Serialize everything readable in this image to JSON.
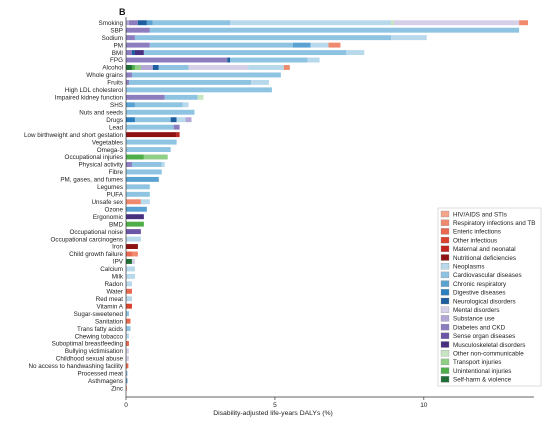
{
  "chart_data": {
    "type": "bar",
    "orientation": "horizontal",
    "stacked": true,
    "panel_label": "B",
    "xlabel": "Disability-adjusted life-years DALYs (%)",
    "ylabel": "",
    "xlim": [
      0,
      13.7
    ],
    "xticks": [
      0,
      5,
      10
    ],
    "grid": false,
    "legend_position": "bottom-right",
    "causes": [
      {
        "name": "HIV/AIDS and STIs",
        "color": "#f4a58a"
      },
      {
        "name": "Respiratory infections and TB",
        "color": "#f08a6e"
      },
      {
        "name": "Enteric infections",
        "color": "#e8694f"
      },
      {
        "name": "Other infectious",
        "color": "#d9432f"
      },
      {
        "name": "Maternal and neonatal",
        "color": "#c0261f"
      },
      {
        "name": "Nutritional deficiencies",
        "color": "#8e1212"
      },
      {
        "name": "Neoplasms",
        "color": "#b8d8ec"
      },
      {
        "name": "Cardiovascular diseases",
        "color": "#8ec3e1"
      },
      {
        "name": "Chronic respiratory",
        "color": "#5aa2d1"
      },
      {
        "name": "Digestive diseases",
        "color": "#2b7fbf"
      },
      {
        "name": "Neurological disorders",
        "color": "#1d5e9e"
      },
      {
        "name": "Mental disorders",
        "color": "#d6cfe8"
      },
      {
        "name": "Substance use",
        "color": "#b3a7d6"
      },
      {
        "name": "Diabetes and CKD",
        "color": "#8c7dbf"
      },
      {
        "name": "Sense organ diseases",
        "color": "#6a55a6"
      },
      {
        "name": "Musculoskeletal disorders",
        "color": "#47307f"
      },
      {
        "name": "Other non-communicable",
        "color": "#c7e5c2"
      },
      {
        "name": "Transport injuries",
        "color": "#8fcf85"
      },
      {
        "name": "Unintentional injuries",
        "color": "#4fae4a"
      },
      {
        "name": "Self-harm & violence",
        "color": "#1f6e35"
      }
    ],
    "categories": [
      "Smoking",
      "SBP",
      "Sodium",
      "PM",
      "BMI",
      "FPG",
      "Alcohol",
      "Whole grains",
      "Fruits",
      "High LDL cholesterol",
      "Impaired kidney function",
      "SHS",
      "Nuts and seeds",
      "Drugs",
      "Lead",
      "Low birthweight and short gestation",
      "Vegetables",
      "Omega-3",
      "Occupational injuries",
      "Physical activity",
      "Fibre",
      "PM, gases, and fumes",
      "Legumes",
      "PUFA",
      "Unsafe sex",
      "Ozone",
      "Ergonomic",
      "BMD",
      "Occupational noise",
      "Occupational carcinogens",
      "Iron",
      "Child growth failure",
      "IPV",
      "Calcium",
      "Milk",
      "Radon",
      "Water",
      "Red meat",
      "Vitamin A",
      "Sugar-sweetened",
      "Sanitation",
      "Trans fatty acids",
      "Chewing tobacco",
      "Suboptimal breastfeeding",
      "Bullying victimisation",
      "Childhood sexual abuse",
      "No access to handwashing facility",
      "Processed meat",
      "Asthmagens",
      "Zinc"
    ],
    "bars": [
      [
        [
          "Substance use",
          0.1
        ],
        [
          "Diabetes and CKD",
          0.3
        ],
        [
          "Neurological disorders",
          0.3
        ],
        [
          "Chronic respiratory",
          0.2
        ],
        [
          "Cardiovascular diseases",
          2.6
        ],
        [
          "Neoplasms",
          5.4
        ],
        [
          "Other non-communicable",
          0.1
        ],
        [
          "Mental disorders",
          4.2
        ],
        [
          "Respiratory infections and TB",
          0.3
        ]
      ],
      [
        [
          "Diabetes and CKD",
          0.8
        ],
        [
          "Cardiovascular diseases",
          12.4
        ]
      ],
      [
        [
          "Diabetes and CKD",
          0.3
        ],
        [
          "Cardiovascular diseases",
          8.6
        ],
        [
          "Neoplasms",
          1.2
        ]
      ],
      [
        [
          "Diabetes and CKD",
          0.8
        ],
        [
          "Cardiovascular diseases",
          4.8
        ],
        [
          "Chronic respiratory",
          0.6
        ],
        [
          "Neoplasms",
          0.6
        ],
        [
          "Respiratory infections and TB",
          0.4
        ]
      ],
      [
        [
          "Diabetes and CKD",
          0.2
        ],
        [
          "Neurological disorders",
          0.1
        ],
        [
          "Musculoskeletal disorders",
          0.3
        ],
        [
          "Cardiovascular diseases",
          6.8
        ],
        [
          "Neoplasms",
          0.6
        ]
      ],
      [
        [
          "Diabetes and CKD",
          3.4
        ],
        [
          "Neurological disorders",
          0.1
        ],
        [
          "Cardiovascular diseases",
          2.6
        ],
        [
          "Neoplasms",
          0.4
        ]
      ],
      [
        [
          "Self-harm & violence",
          0.2
        ],
        [
          "Unintentional injuries",
          0.1
        ],
        [
          "Transport injuries",
          0.2
        ],
        [
          "Substance use",
          0.4
        ],
        [
          "Neurological disorders",
          0.2
        ],
        [
          "Cardiovascular diseases",
          1.0
        ],
        [
          "Mental disorders",
          2.0
        ],
        [
          "Neoplasms",
          1.2
        ],
        [
          "Respiratory infections and TB",
          0.2
        ]
      ],
      [
        [
          "Diabetes and CKD",
          0.2
        ],
        [
          "Cardiovascular diseases",
          5.0
        ]
      ],
      [
        [
          "Diabetes and CKD",
          0.1
        ],
        [
          "Cardiovascular diseases",
          4.1
        ],
        [
          "Neoplasms",
          0.6
        ]
      ],
      [
        [
          "Cardiovascular diseases",
          4.9
        ]
      ],
      [
        [
          "Diabetes and CKD",
          1.3
        ],
        [
          "Cardiovascular diseases",
          1.1
        ],
        [
          "Other non-communicable",
          0.2
        ]
      ],
      [
        [
          "Chronic respiratory",
          0.3
        ],
        [
          "Cardiovascular diseases",
          1.6
        ],
        [
          "Neoplasms",
          0.2
        ]
      ],
      [
        [
          "Cardiovascular diseases",
          2.3
        ]
      ],
      [
        [
          "Digestive diseases",
          0.3
        ],
        [
          "Cardiovascular diseases",
          1.2
        ],
        [
          "Neurological disorders",
          0.2
        ],
        [
          "Neoplasms",
          0.3
        ],
        [
          "Substance use",
          0.2
        ]
      ],
      [
        [
          "Cardiovascular diseases",
          1.6
        ],
        [
          "Diabetes and CKD",
          0.2
        ]
      ],
      [
        [
          "Nutritional deficiencies",
          1.7
        ],
        [
          "Maternal and neonatal",
          0.1
        ]
      ],
      [
        [
          "Cardiovascular diseases",
          1.7
        ]
      ],
      [
        [
          "Cardiovascular diseases",
          1.5
        ]
      ],
      [
        [
          "Unintentional injuries",
          0.6
        ],
        [
          "Transport injuries",
          0.8
        ]
      ],
      [
        [
          "Diabetes and CKD",
          0.2
        ],
        [
          "Cardiovascular diseases",
          1.0
        ],
        [
          "Neoplasms",
          0.1
        ]
      ],
      [
        [
          "Cardiovascular diseases",
          1.2
        ]
      ],
      [
        [
          "Chronic respiratory",
          1.1
        ]
      ],
      [
        [
          "Cardiovascular diseases",
          0.8
        ]
      ],
      [
        [
          "Cardiovascular diseases",
          0.8
        ]
      ],
      [
        [
          "Respiratory infections and TB",
          0.5
        ],
        [
          "Neoplasms",
          0.3
        ]
      ],
      [
        [
          "Chronic respiratory",
          0.7
        ]
      ],
      [
        [
          "Musculoskeletal disorders",
          0.6
        ]
      ],
      [
        [
          "Unintentional injuries",
          0.6
        ]
      ],
      [
        [
          "Sense organ diseases",
          0.5
        ]
      ],
      [
        [
          "Neoplasms",
          0.5
        ]
      ],
      [
        [
          "Nutritional deficiencies",
          0.4
        ]
      ],
      [
        [
          "Enteric infections",
          0.2
        ],
        [
          "Respiratory infections and TB",
          0.2
        ]
      ],
      [
        [
          "Self-harm & violence",
          0.2
        ],
        [
          "Mental disorders",
          0.1
        ]
      ],
      [
        [
          "Neoplasms",
          0.3
        ]
      ],
      [
        [
          "Neoplasms",
          0.3
        ]
      ],
      [
        [
          "Neoplasms",
          0.2
        ]
      ],
      [
        [
          "Enteric infections",
          0.2
        ]
      ],
      [
        [
          "Neoplasms",
          0.2
        ]
      ],
      [
        [
          "Other infectious",
          0.2
        ]
      ],
      [
        [
          "Cardiovascular diseases",
          0.1
        ]
      ],
      [
        [
          "Enteric infections",
          0.15
        ]
      ],
      [
        [
          "Cardiovascular diseases",
          0.15
        ]
      ],
      [
        [
          "Neoplasms",
          0.1
        ]
      ],
      [
        [
          "Enteric infections",
          0.1
        ]
      ],
      [
        [
          "Mental disorders",
          0.1
        ]
      ],
      [
        [
          "Mental disorders",
          0.1
        ]
      ],
      [
        [
          "Enteric infections",
          0.08
        ]
      ],
      [
        [
          "Cardiovascular diseases",
          0.05
        ]
      ],
      [
        [
          "Chronic respiratory",
          0.05
        ]
      ],
      [
        [
          "Respiratory infections and TB",
          0.03
        ]
      ]
    ]
  }
}
